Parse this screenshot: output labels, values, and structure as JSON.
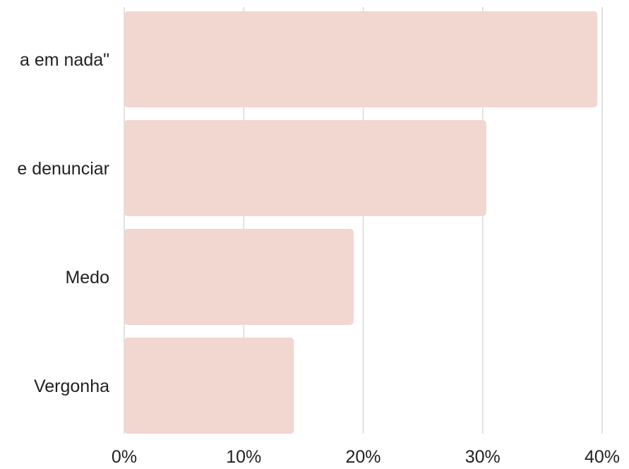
{
  "chart_data": {
    "type": "bar",
    "orientation": "horizontal",
    "categories": [
      "\"Não adianta em nada\"",
      "Não sabe denunciar",
      "Medo",
      "Vergonha"
    ],
    "category_labels_visible": [
      "a em nada\"",
      "e denunciar",
      "Medo",
      "Vergonha"
    ],
    "values": [
      39.6,
      30.3,
      19.2,
      14.2
    ],
    "x_ticks": [
      "0%",
      "10%",
      "20%",
      "30%",
      "40%"
    ],
    "xlim": [
      0,
      40
    ],
    "unit": "%",
    "grid": "vertical",
    "bar_color": "#f2d6d0",
    "grid_color": "#d9d9d9",
    "title": "",
    "xlabel": "",
    "ylabel": ""
  }
}
